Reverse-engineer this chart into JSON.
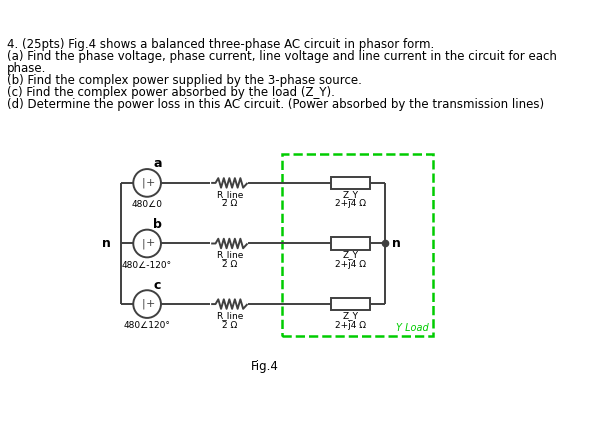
{
  "title_lines": [
    "4. (25pts) Fig.4 shows a balanced three-phase AC circuit in phasor form.",
    "(a) Find the phase voltage, phase current, line voltage and line current in the circuit for each",
    "phase.",
    "(b) Find the complex power supplied by the 3-phase source.",
    "(c) Find the complex power absorbed by the load (Z_Y).",
    "(d) Determine the power loss in this AC circuit. (Power absorbed by the transmission lines)"
  ],
  "fig_label": "Fig.4",
  "sources": [
    "480∠0",
    "480∠-120°",
    "480∠120°"
  ],
  "phase_labels": [
    "a",
    "b",
    "c"
  ],
  "r_line_label1": "R_line",
  "r_line_label2": "2 Ω",
  "zy_label1": "Z_Y",
  "zy_label2": "2+j4 Ω",
  "n_label": "n",
  "y_load_label": "Y Load",
  "bg_color": "#ffffff",
  "line_color": "#404040",
  "dashed_box_color": "#00cc00",
  "text_color": "#000000",
  "y_load_text_color": "#00cc00",
  "text_fontsize": 8.5,
  "label_fontsize": 7.0,
  "small_fontsize": 6.5,
  "phase_fontsize": 9.0
}
